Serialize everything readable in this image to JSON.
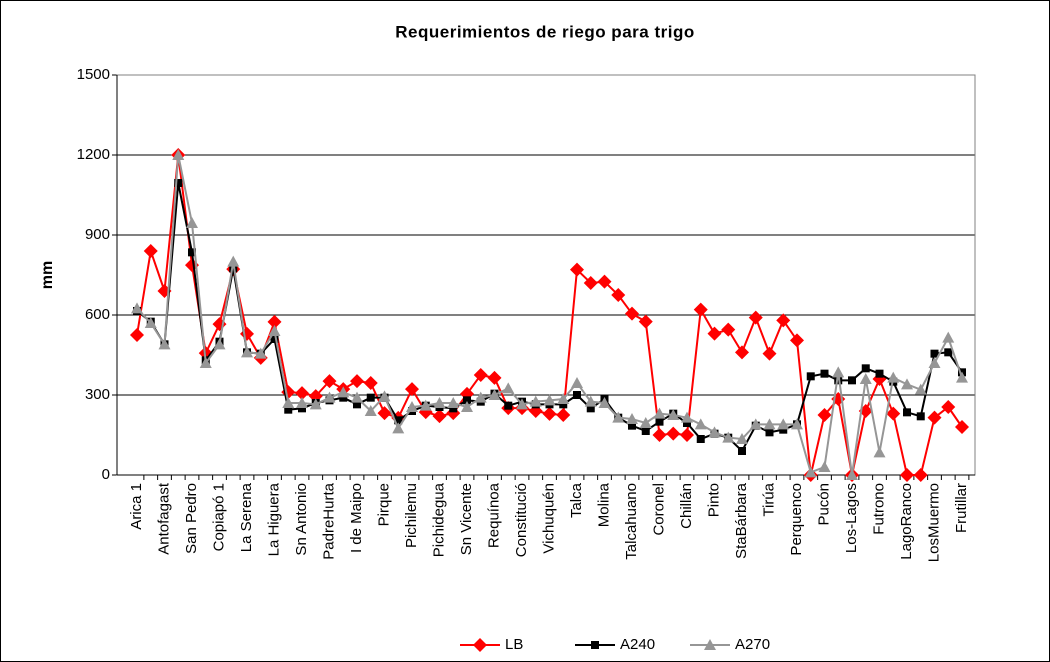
{
  "chart_data": {
    "type": "line",
    "title": "Requerimientos de riego para trigo",
    "ylabel": "mm",
    "categories": [
      "Arica 1",
      null,
      "Antofagast",
      null,
      "San Pedro",
      null,
      "Copiapó 1",
      null,
      "La Serena",
      null,
      "La Higuera",
      null,
      "Sn Antonio",
      null,
      "PadreHurta",
      null,
      "I de Maipo",
      null,
      "Pirque",
      null,
      "Pichilemu",
      null,
      "Pichidegua",
      null,
      "Sn Vicente",
      null,
      "Requínoa",
      null,
      "Constitució",
      null,
      "Vichuquén",
      null,
      "Talca",
      null,
      "Molina",
      null,
      "Talcahuano",
      null,
      "Coronel",
      null,
      "Chillán",
      null,
      "Pinto",
      null,
      "StaBárbara",
      null,
      "Tirúa",
      null,
      "Perquenco",
      null,
      "Pucón",
      null,
      "Los-Lagos",
      null,
      "Futrono",
      null,
      "LagoRanco",
      null,
      "LosMuermo",
      null,
      "Frutillar"
    ],
    "series": [
      {
        "name": "LB",
        "color": "#ff0000",
        "marker": "diamond",
        "values": [
          525,
          840,
          690,
          1200,
          787,
          457,
          566,
          772,
          529,
          439,
          574,
          311,
          307,
          296,
          352,
          322,
          352,
          345,
          232,
          214,
          322,
          236,
          221,
          232,
          304,
          375,
          364,
          251,
          251,
          240,
          229,
          225,
          770,
          720,
          725,
          675,
          605,
          575,
          150,
          155,
          150,
          620,
          530,
          545,
          460,
          590,
          455,
          580,
          505,
          0,
          225,
          285,
          0,
          240,
          360,
          230,
          0,
          0,
          215,
          255,
          180
        ]
      },
      {
        "name": "A240",
        "color": "#000000",
        "marker": "square",
        "values": [
          615,
          575,
          490,
          1095,
          835,
          430,
          500,
          775,
          460,
          455,
          510,
          245,
          250,
          270,
          280,
          290,
          265,
          290,
          290,
          205,
          240,
          260,
          255,
          250,
          280,
          275,
          305,
          260,
          275,
          265,
          265,
          265,
          300,
          250,
          285,
          215,
          185,
          165,
          200,
          230,
          195,
          135,
          155,
          140,
          90,
          185,
          160,
          170,
          190,
          370,
          380,
          355,
          355,
          400,
          380,
          350,
          235,
          220,
          455,
          460,
          385
        ]
      },
      {
        "name": "A270",
        "color": "#969696",
        "marker": "triangle",
        "values": [
          625,
          570,
          490,
          1200,
          945,
          420,
          490,
          800,
          460,
          455,
          540,
          270,
          270,
          265,
          290,
          310,
          290,
          240,
          295,
          175,
          255,
          260,
          270,
          270,
          255,
          290,
          300,
          325,
          265,
          275,
          280,
          285,
          345,
          275,
          270,
          215,
          210,
          195,
          230,
          225,
          215,
          190,
          160,
          140,
          135,
          190,
          190,
          190,
          190,
          10,
          30,
          385,
          0,
          360,
          85,
          365,
          340,
          320,
          420,
          515,
          365
        ]
      }
    ],
    "ylim": [
      0,
      1500
    ],
    "yticks": [
      0,
      300,
      600,
      900,
      1200,
      1500
    ],
    "grid": true,
    "legend": "bottom"
  }
}
